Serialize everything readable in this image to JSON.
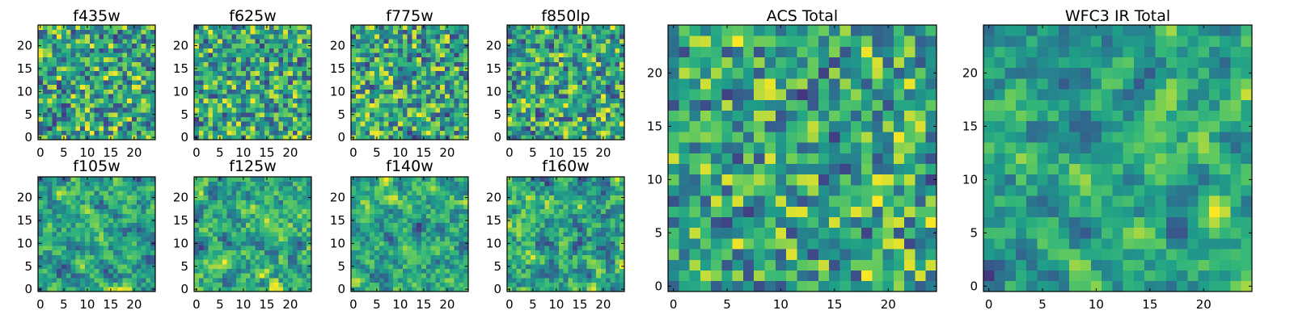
{
  "chart_data": [
    {
      "type": "heatmap",
      "title": "f435w",
      "xticks": [
        "0",
        "5",
        "10",
        "15",
        "20"
      ],
      "yticks": [
        "0",
        "5",
        "10",
        "15",
        "20"
      ],
      "xlim": [
        -0.5,
        24.5
      ],
      "ylim": [
        -0.5,
        24.5
      ],
      "grid_size": [
        25,
        25
      ],
      "colormap": "viridis",
      "seed": 435,
      "smooth": 0.1
    },
    {
      "type": "heatmap",
      "title": "f625w",
      "xticks": [
        "0",
        "5",
        "10",
        "15",
        "20"
      ],
      "yticks": [
        "0",
        "5",
        "10",
        "15",
        "20"
      ],
      "xlim": [
        -0.5,
        24.5
      ],
      "ylim": [
        -0.5,
        24.5
      ],
      "grid_size": [
        25,
        25
      ],
      "colormap": "viridis",
      "seed": 625,
      "smooth": 0.1
    },
    {
      "type": "heatmap",
      "title": "f775w",
      "xticks": [
        "0",
        "5",
        "10",
        "15",
        "20"
      ],
      "yticks": [
        "0",
        "5",
        "10",
        "15",
        "20"
      ],
      "xlim": [
        -0.5,
        24.5
      ],
      "ylim": [
        -0.5,
        24.5
      ],
      "grid_size": [
        25,
        25
      ],
      "colormap": "viridis",
      "seed": 775,
      "smooth": 0.1
    },
    {
      "type": "heatmap",
      "title": "f850lp",
      "xticks": [
        "0",
        "5",
        "10",
        "15",
        "20"
      ],
      "yticks": [
        "0",
        "5",
        "10",
        "15",
        "20"
      ],
      "xlim": [
        -0.5,
        24.5
      ],
      "ylim": [
        -0.5,
        24.5
      ],
      "grid_size": [
        25,
        25
      ],
      "colormap": "viridis",
      "seed": 850,
      "smooth": 0.1
    },
    {
      "type": "heatmap",
      "title": "f105w",
      "xticks": [
        "0",
        "5",
        "10",
        "15",
        "20"
      ],
      "yticks": [
        "0",
        "5",
        "10",
        "15",
        "20"
      ],
      "xlim": [
        -0.5,
        24.5
      ],
      "ylim": [
        -0.5,
        24.5
      ],
      "grid_size": [
        25,
        25
      ],
      "colormap": "viridis",
      "seed": 105,
      "smooth": 0.45
    },
    {
      "type": "heatmap",
      "title": "f125w",
      "xticks": [
        "0",
        "5",
        "10",
        "15",
        "20"
      ],
      "yticks": [
        "0",
        "5",
        "10",
        "15",
        "20"
      ],
      "xlim": [
        -0.5,
        24.5
      ],
      "ylim": [
        -0.5,
        24.5
      ],
      "grid_size": [
        25,
        25
      ],
      "colormap": "viridis",
      "seed": 125,
      "smooth": 0.45
    },
    {
      "type": "heatmap",
      "title": "f140w",
      "xticks": [
        "0",
        "5",
        "10",
        "15",
        "20"
      ],
      "yticks": [
        "0",
        "5",
        "10",
        "15",
        "20"
      ],
      "xlim": [
        -0.5,
        24.5
      ],
      "ylim": [
        -0.5,
        24.5
      ],
      "grid_size": [
        25,
        25
      ],
      "colormap": "viridis",
      "seed": 140,
      "smooth": 0.45
    },
    {
      "type": "heatmap",
      "title": "f160w",
      "xticks": [
        "0",
        "5",
        "10",
        "15",
        "20"
      ],
      "yticks": [
        "0",
        "5",
        "10",
        "15",
        "20"
      ],
      "xlim": [
        -0.5,
        24.5
      ],
      "ylim": [
        -0.5,
        24.5
      ],
      "grid_size": [
        25,
        25
      ],
      "colormap": "viridis",
      "seed": 160,
      "smooth": 0.45
    },
    {
      "type": "heatmap",
      "title": "ACS Total",
      "xticks": [
        "0",
        "5",
        "10",
        "15",
        "20"
      ],
      "yticks": [
        "0",
        "5",
        "10",
        "15",
        "20"
      ],
      "xlim": [
        -0.5,
        24.5
      ],
      "ylim": [
        -0.5,
        24.5
      ],
      "grid_size": [
        25,
        25
      ],
      "colormap": "viridis",
      "seed": 2001,
      "smooth": 0.18
    },
    {
      "type": "heatmap",
      "title": "WFC3 IR Total",
      "xticks": [
        "0",
        "5",
        "10",
        "15",
        "20"
      ],
      "yticks": [
        "0",
        "5",
        "10",
        "15",
        "20"
      ],
      "xlim": [
        -0.5,
        24.5
      ],
      "ylim": [
        -0.5,
        24.5
      ],
      "grid_size": [
        25,
        25
      ],
      "colormap": "viridis",
      "seed": 3003,
      "smooth": 0.55
    }
  ]
}
